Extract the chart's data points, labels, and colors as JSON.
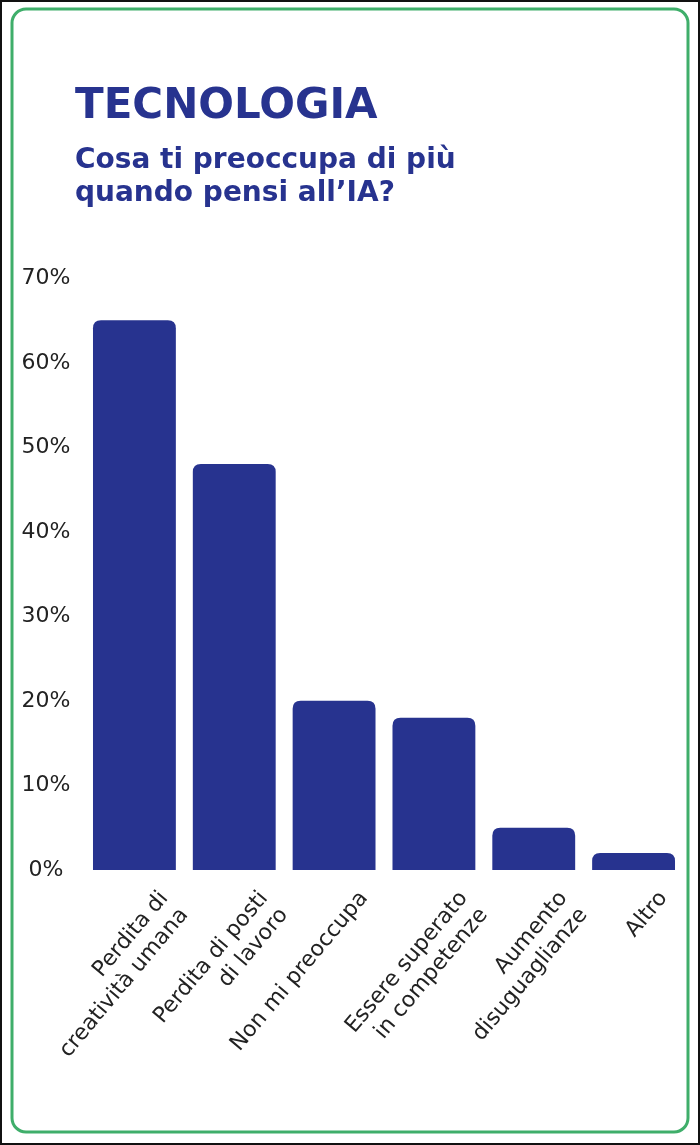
{
  "chart_data": {
    "type": "bar",
    "title": "TECNOLOGIA",
    "subtitle": "Cosa ti preoccupa di più\nquando pensi all’IA?",
    "categories": [
      "Perdita di\ncreatività umana",
      "Perdita di posti\ndi lavoro",
      "Non mi preoccupa",
      "Essere superato\nin competenze",
      "Aumento\ndisuguaglianze",
      "Altro"
    ],
    "values": [
      65,
      48,
      20,
      18,
      5,
      2
    ],
    "color": "#27338f",
    "ylim": [
      0,
      70
    ],
    "yticks": [
      {
        "value": 0,
        "label": "0%"
      },
      {
        "value": 10,
        "label": "10%"
      },
      {
        "value": 20,
        "label": "20%"
      },
      {
        "value": 30,
        "label": "30%"
      },
      {
        "value": 40,
        "label": "40%"
      },
      {
        "value": 50,
        "label": "50%"
      },
      {
        "value": 60,
        "label": "60%"
      },
      {
        "value": 70,
        "label": "70%"
      }
    ],
    "grid": false
  }
}
